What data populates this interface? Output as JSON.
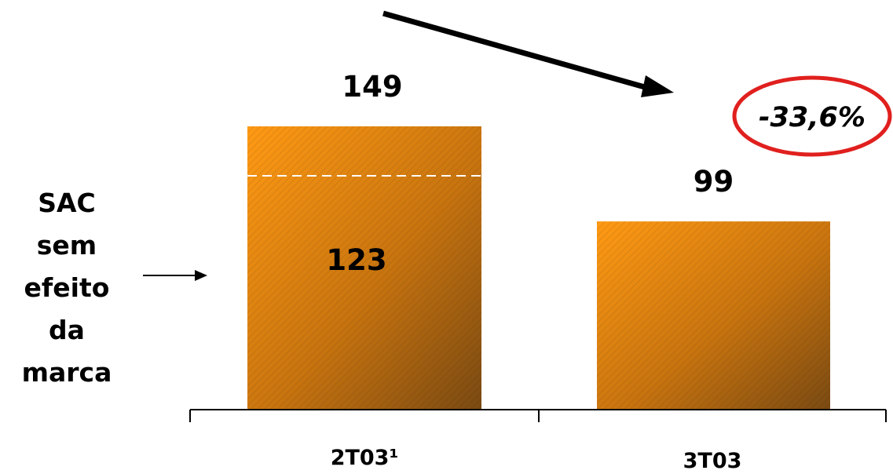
{
  "chart_data": {
    "type": "bar",
    "title": "",
    "xlabel": "",
    "ylabel": "",
    "categories": [
      "2T03¹",
      "3T03"
    ],
    "values": [
      149,
      99
    ],
    "ylim": [
      0,
      149
    ],
    "grid": false,
    "segment_marker": {
      "category": "2T03¹",
      "value": 123,
      "label": "123"
    },
    "side_note": "SAC\nsem\nefeito\nda\nmarca",
    "annotation": {
      "text": "-33,6%",
      "style": "red-ellipse",
      "from": "2T03¹",
      "to": "3T03"
    },
    "colors": {
      "bar_light": "#FF9A14",
      "bar_dark": "#7A4A12",
      "ellipse": "#E0201E",
      "axis": "#000000"
    }
  }
}
